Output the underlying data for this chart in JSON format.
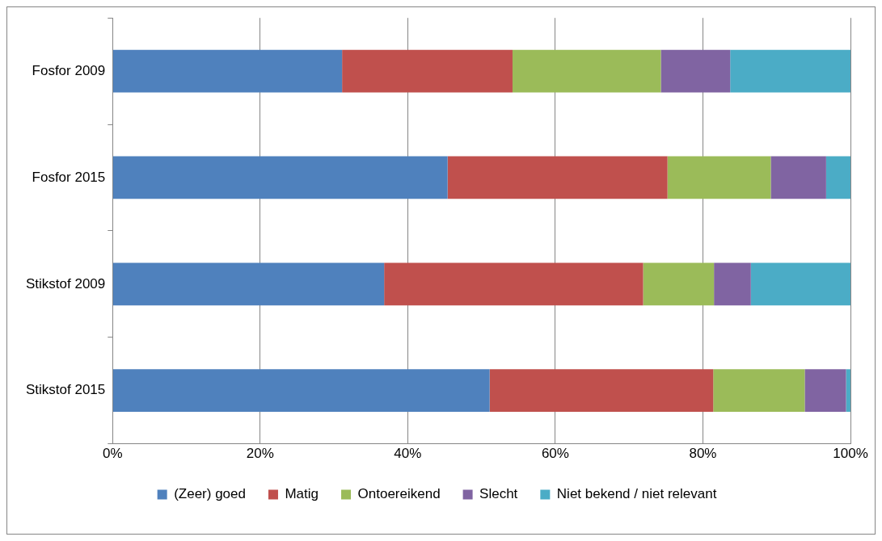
{
  "chart_data": {
    "type": "bar",
    "orientation": "horizontal",
    "stacked": true,
    "categories": [
      "Fosfor 2009",
      "Fosfor 2015",
      "Stikstof 2009",
      "Stikstof 2015"
    ],
    "series": [
      {
        "name": "(Zeer) goed",
        "color": "#4f81bd",
        "values": [
          31.1,
          45.4,
          36.8,
          51.1
        ]
      },
      {
        "name": "Matig",
        "color": "#c0504d",
        "values": [
          23.1,
          29.8,
          35.1,
          30.3
        ]
      },
      {
        "name": "Ontoereikend",
        "color": "#9bbb59",
        "values": [
          20.1,
          14.0,
          9.6,
          12.4
        ]
      },
      {
        "name": "Slecht",
        "color": "#8064a2",
        "values": [
          9.4,
          7.5,
          5.0,
          5.6
        ]
      },
      {
        "name": "Niet bekend / niet relevant",
        "color": "#4bacc6",
        "values": [
          16.3,
          3.3,
          13.5,
          0.6
        ]
      }
    ],
    "xlim": [
      0,
      100
    ],
    "xticks": [
      {
        "value": 0,
        "label": "0%"
      },
      {
        "value": 20,
        "label": "20%"
      },
      {
        "value": 40,
        "label": "40%"
      },
      {
        "value": 60,
        "label": "60%"
      },
      {
        "value": 80,
        "label": "80%"
      },
      {
        "value": 100,
        "label": "100%"
      }
    ],
    "grid": "x",
    "legend": "bottom"
  }
}
